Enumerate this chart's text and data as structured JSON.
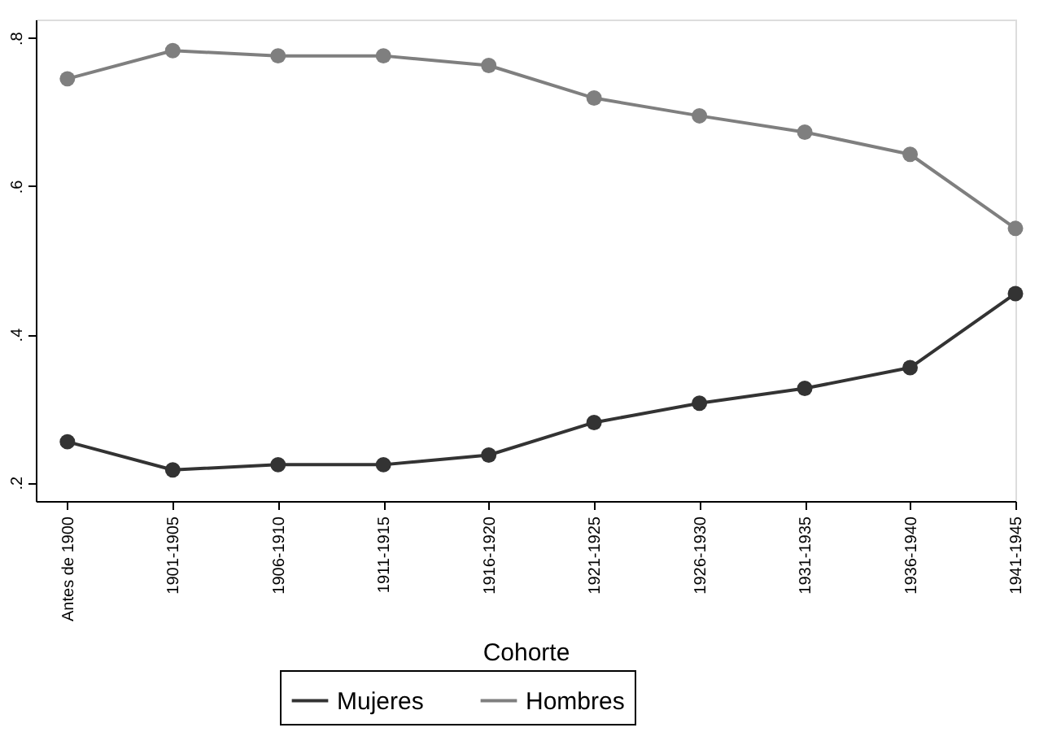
{
  "chart_data": {
    "type": "line",
    "xlabel": "Cohorte",
    "categories": [
      "Antes de 1900",
      "1901-1905",
      "1906-1910",
      "1911-1915",
      "1916-1920",
      "1921-1925",
      "1926-1930",
      "1931-1935",
      "1936-1940",
      "1941-1945"
    ],
    "series": [
      {
        "name": "Mujeres",
        "color": "#333333",
        "values": [
          0.255,
          0.217,
          0.224,
          0.224,
          0.237,
          0.281,
          0.307,
          0.327,
          0.355,
          0.455
        ]
      },
      {
        "name": "Hombres",
        "color": "#7f7f7f",
        "values": [
          0.745,
          0.783,
          0.776,
          0.776,
          0.763,
          0.719,
          0.695,
          0.673,
          0.643,
          0.543
        ]
      }
    ],
    "ylim": [
      0.175,
      0.825
    ],
    "yticks": [
      {
        "value": 0.2,
        "label": ".2"
      },
      {
        "value": 0.4,
        "label": ".4"
      },
      {
        "value": 0.6,
        "label": ".6"
      },
      {
        "value": 0.8,
        "label": ".8"
      }
    ],
    "grid": false,
    "legend": "bottom",
    "marker": "circle",
    "line_style": "solid"
  }
}
